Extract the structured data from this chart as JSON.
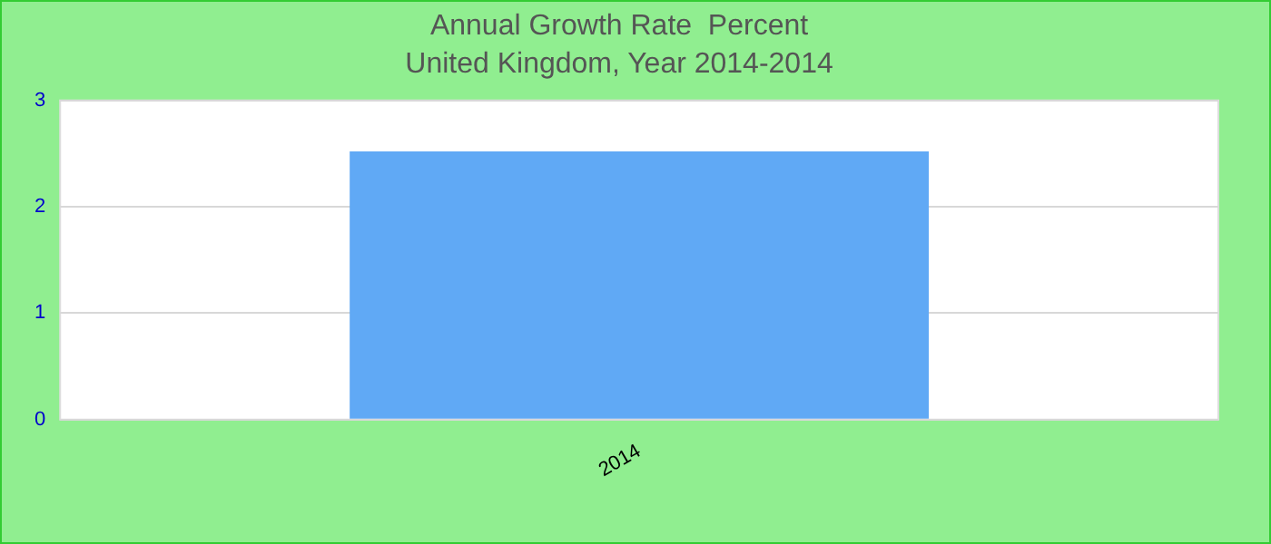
{
  "chart_data": {
    "type": "bar",
    "title": "Annual Growth Rate  Percent",
    "subtitle": "United Kingdom, Year 2014-2014",
    "categories": [
      "2014"
    ],
    "values": [
      2.52
    ],
    "color": "#60a9f5",
    "ylim": [
      0,
      3
    ],
    "yticks": [
      0,
      1,
      2,
      3
    ],
    "grid": "y"
  }
}
